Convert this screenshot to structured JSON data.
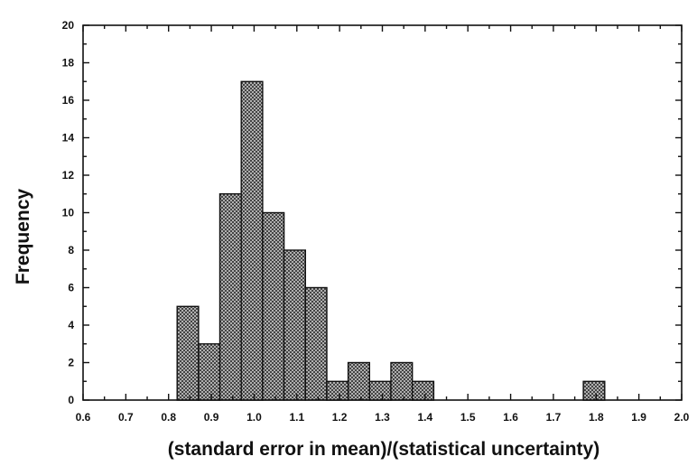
{
  "chart_data": {
    "type": "bar",
    "title": "",
    "xlabel": "(standard error in mean)/(statistical uncertainty)",
    "ylabel": "Frequency",
    "xlim": [
      0.6,
      2.0
    ],
    "ylim": [
      0,
      20
    ],
    "x_ticks": [
      "0.6",
      "0.7",
      "0.8",
      "0.9",
      "1.0",
      "1.1",
      "1.2",
      "1.3",
      "1.4",
      "1.5",
      "1.6",
      "1.7",
      "1.8",
      "1.9",
      "2.0"
    ],
    "y_ticks": [
      "0",
      "2",
      "4",
      "6",
      "8",
      "10",
      "12",
      "14",
      "16",
      "18",
      "20"
    ],
    "bin_width": 0.05,
    "bins": [
      {
        "x": 0.82,
        "value": 5
      },
      {
        "x": 0.87,
        "value": 3
      },
      {
        "x": 0.92,
        "value": 11
      },
      {
        "x": 0.97,
        "value": 17
      },
      {
        "x": 1.02,
        "value": 10
      },
      {
        "x": 1.07,
        "value": 8
      },
      {
        "x": 1.12,
        "value": 6
      },
      {
        "x": 1.17,
        "value": 1
      },
      {
        "x": 1.22,
        "value": 2
      },
      {
        "x": 1.27,
        "value": 1
      },
      {
        "x": 1.32,
        "value": 2
      },
      {
        "x": 1.37,
        "value": 1
      },
      {
        "x": 1.77,
        "value": 1
      }
    ],
    "grid": false,
    "bar_pattern": "crosshatch",
    "colors": {
      "bar_fill": "#3a3a3a",
      "bar_background": "#d9d9d9",
      "axis": "#111111"
    }
  }
}
